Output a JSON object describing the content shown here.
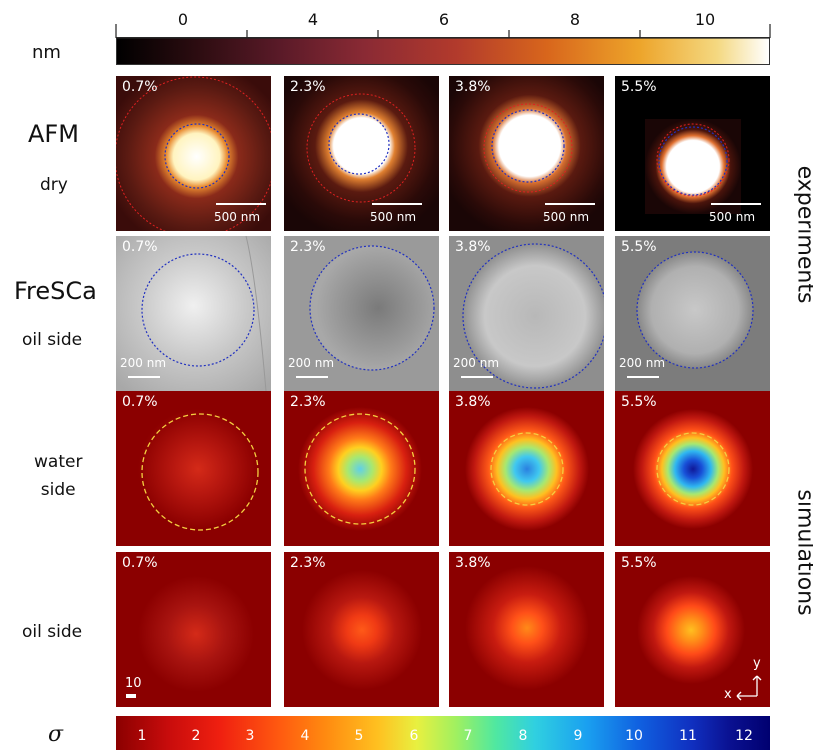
{
  "top_colorbar": {
    "unit": "nm",
    "ticks": [
      "0",
      "4",
      "6",
      "8",
      "10"
    ],
    "colors": [
      "#000000",
      "#3a0a0a",
      "#7a1f2a",
      "#b03a2e",
      "#d96a1c",
      "#eea52a",
      "#f3da7a",
      "#ffffff"
    ]
  },
  "bottom_colorbar": {
    "unit": "σ",
    "ticks": [
      "1",
      "2",
      "3",
      "4",
      "5",
      "6",
      "7",
      "8",
      "9",
      "10",
      "11",
      "12"
    ],
    "colors": [
      "#8b0000",
      "#d21010",
      "#ff3a10",
      "#ff8a10",
      "#ffd020",
      "#c8f040",
      "#60e890",
      "#30d0e0",
      "#1090e8",
      "#1040d0",
      "#1010a0",
      "#000070"
    ]
  },
  "rows": {
    "afm": {
      "title": "AFM",
      "subtitle": "dry"
    },
    "fresca": {
      "title": "FreSCa",
      "subtitle": "oil side"
    },
    "water": {
      "title": "water\nside"
    },
    "oil": {
      "title": "oil side"
    }
  },
  "side_labels": {
    "experiments": "experiments",
    "simulations": "simulations"
  },
  "concentrations": [
    "0.7%",
    "2.3%",
    "3.8%",
    "5.5%"
  ],
  "afm_scalebar": "500 nm",
  "fresca_scalebar": "200 nm",
  "sim_scalebar": "10",
  "axes": {
    "x": "x",
    "y": "y"
  },
  "water_core_colors": [
    "#ff5a18",
    "#a8e870",
    "#60d8f0",
    "#1850d8"
  ],
  "oil_core_colors": [
    "#ff3018",
    "#ff5a18",
    "#ff7a18",
    "#ffa020"
  ]
}
